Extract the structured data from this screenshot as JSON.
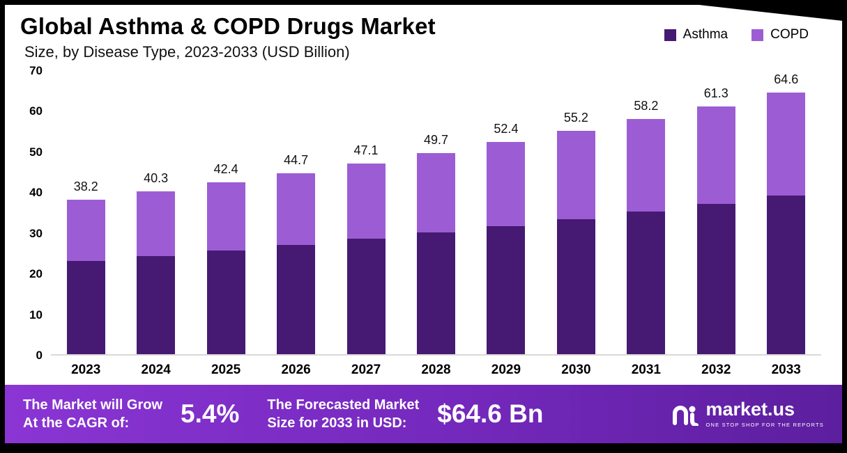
{
  "header": {
    "title": "Global Asthma & COPD Drugs Market",
    "subtitle": "Size, by Disease Type, 2023-2033 (USD Billion)"
  },
  "chart_data": {
    "type": "bar",
    "stacked": true,
    "title": "Global Asthma & COPD Drugs Market Size, by Disease Type, 2023-2033 (USD Billion)",
    "categories": [
      "2023",
      "2024",
      "2025",
      "2026",
      "2027",
      "2028",
      "2029",
      "2030",
      "2031",
      "2032",
      "2033"
    ],
    "series": [
      {
        "name": "Asthma",
        "color": "#461a73",
        "values": [
          23.0,
          24.3,
          25.6,
          27.0,
          28.5,
          30.1,
          31.7,
          33.4,
          35.3,
          37.2,
          39.3
        ]
      },
      {
        "name": "COPD",
        "color": "#9c5dd4",
        "values": [
          15.2,
          16.0,
          16.8,
          17.7,
          18.6,
          19.6,
          20.7,
          21.8,
          22.9,
          24.1,
          25.3
        ]
      }
    ],
    "totals": [
      38.2,
      40.3,
      42.4,
      44.7,
      47.1,
      49.7,
      52.4,
      55.2,
      58.2,
      61.3,
      64.6
    ],
    "xlabel": "",
    "ylabel": "",
    "ylim": [
      0,
      70
    ],
    "yticks": [
      0,
      10,
      20,
      30,
      40,
      50,
      60,
      70
    ],
    "grid": false,
    "legend_position": "top-right"
  },
  "banner": {
    "cagr_label_line1": "The Market will Grow",
    "cagr_label_line2": "At the CAGR of:",
    "cagr_value": "5.4%",
    "forecast_label_line1": "The Forecasted Market",
    "forecast_label_line2": "Size for 2033 in USD:",
    "forecast_value": "$64.6 Bn",
    "logo_text": "market.us",
    "logo_tagline": "ONE STOP SHOP FOR THE REPORTS"
  },
  "colors": {
    "asthma": "#461a73",
    "copd": "#9c5dd4",
    "banner_start": "#8a35d4",
    "banner_mid": "#7428bc",
    "banner_end": "#5c1f9e",
    "frame_border": "#000000"
  }
}
